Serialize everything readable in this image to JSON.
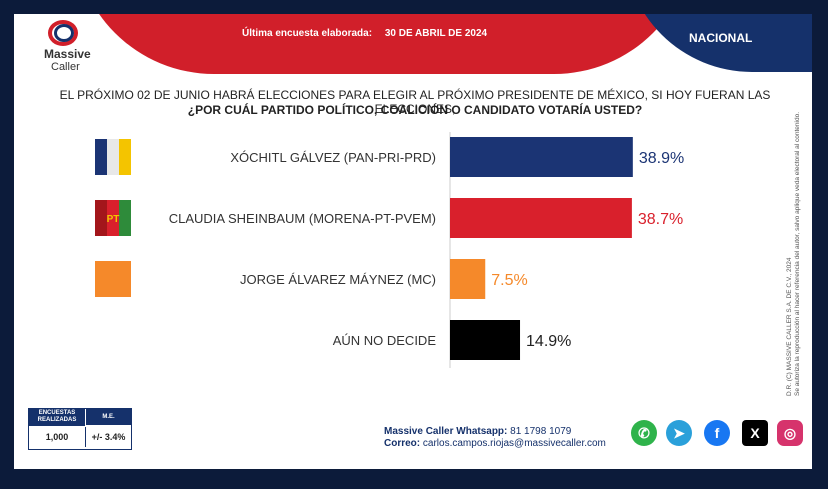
{
  "header": {
    "logo_line1": "Massive",
    "logo_line2": "Caller",
    "survey_label": "Última encuesta elaborada:",
    "survey_date": "30 DE ABRIL DE 2024",
    "scope": "NACIONAL"
  },
  "question": {
    "line1": "EL PRÓXIMO 02 DE JUNIO HABRÁ ELECCIONES PARA ELEGIR AL PRÓXIMO PRESIDENTE DE MÉXICO, SI HOY FUERAN LAS ELECCIONES,",
    "line2": "¿POR CUÁL PARTIDO POLÍTICO, COALICIÓN O CANDIDATO VOTARÍA USTED?"
  },
  "chart_data": {
    "type": "bar",
    "orientation": "horizontal",
    "categories": [
      "XÓCHITL GÁLVEZ (PAN-PRI-PRD)",
      "CLAUDIA SHEINBAUM (MORENA-PT-PVEM)",
      "JORGE ÁLVAREZ MÁYNEZ (MC)",
      "AÚN NO DECIDE"
    ],
    "values": [
      38.9,
      38.7,
      7.5,
      14.9
    ],
    "value_labels": [
      "38.9%",
      "38.7%",
      "7.5%",
      "14.9%"
    ],
    "colors": [
      "#1b3474",
      "#d9202c",
      "#f5892a",
      "#000000"
    ],
    "label_colors": [
      "#1b3474",
      "#d9202c",
      "#f5892a",
      "#222222"
    ],
    "xlim": [
      0,
      100
    ],
    "grid": false,
    "title": "",
    "xlabel": "",
    "ylabel": ""
  },
  "badges": [
    {
      "name": "pan-pri-prd-logos",
      "icon": "party-logos-icon",
      "colors": [
        "#1b3474",
        "#e8e8e8",
        "#f4c400"
      ]
    },
    {
      "name": "morena-pt-pvem-logos",
      "icon": "party-logos-icon",
      "colors": [
        "#a3161b",
        "#d9202c",
        "#2e8b3a"
      ],
      "text": "PT"
    },
    {
      "name": "mc-logo",
      "icon": "movimiento-ciudadano-icon",
      "colors": [
        "#f5892a"
      ]
    }
  ],
  "side_note": {
    "line1": "D.R. (C) MASSIVE CALLER S.A. DE C.V., 2024",
    "line2": "Se autoriza la reproducción al hacer referencia del autor, salvo aplique veda electoral al contenido."
  },
  "info_table": {
    "col1_header": "ENCUESTAS REALIZADAS",
    "col2_header": "M.E.",
    "col1_value": "1,000",
    "col2_value": "+/- 3.4%"
  },
  "contact": {
    "whatsapp_label": "Massive Caller Whatsapp:",
    "whatsapp_value": "81 1798 1079",
    "email_label": "Correo:",
    "email_value": "carlos.campos.riojas@massivecaller.com"
  },
  "social_icons": [
    {
      "name": "whatsapp-icon",
      "color": "#2fb34b",
      "glyph": "✆"
    },
    {
      "name": "telegram-icon",
      "color": "#2aa0da",
      "glyph": "➤"
    },
    {
      "name": "facebook-icon",
      "color": "#1877f2",
      "glyph": "f"
    },
    {
      "name": "x-icon",
      "color": "#000000",
      "glyph": "X"
    },
    {
      "name": "instagram-icon",
      "color": "#d6336c",
      "glyph": "◎"
    }
  ]
}
